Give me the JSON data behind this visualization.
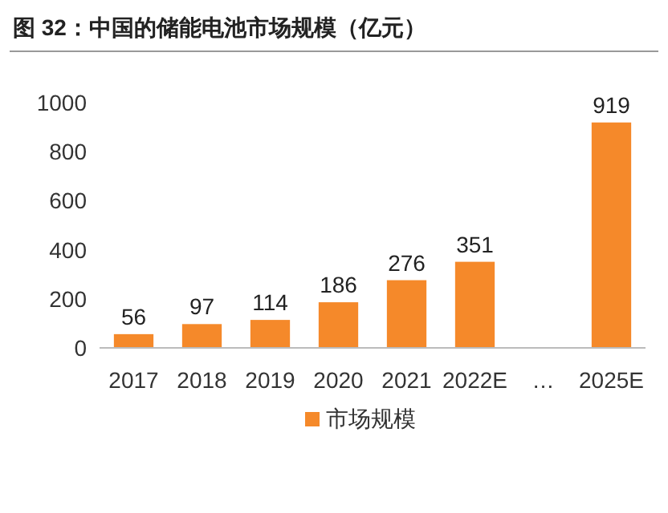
{
  "chart_data": {
    "type": "bar",
    "title": "图 32：中国的储能电池市场规模（亿元）",
    "categories": [
      "2017",
      "2018",
      "2019",
      "2020",
      "2021",
      "2022E",
      "…",
      "2025E"
    ],
    "series": [
      {
        "name": "市场规模",
        "color": "#f5892a",
        "values": [
          56,
          97,
          114,
          186,
          276,
          351,
          null,
          919
        ]
      }
    ],
    "ylim": [
      0,
      1000
    ],
    "yticks": [
      0,
      200,
      400,
      600,
      800,
      1000
    ],
    "data_labels": true,
    "legend": "bottom",
    "grid": false
  }
}
